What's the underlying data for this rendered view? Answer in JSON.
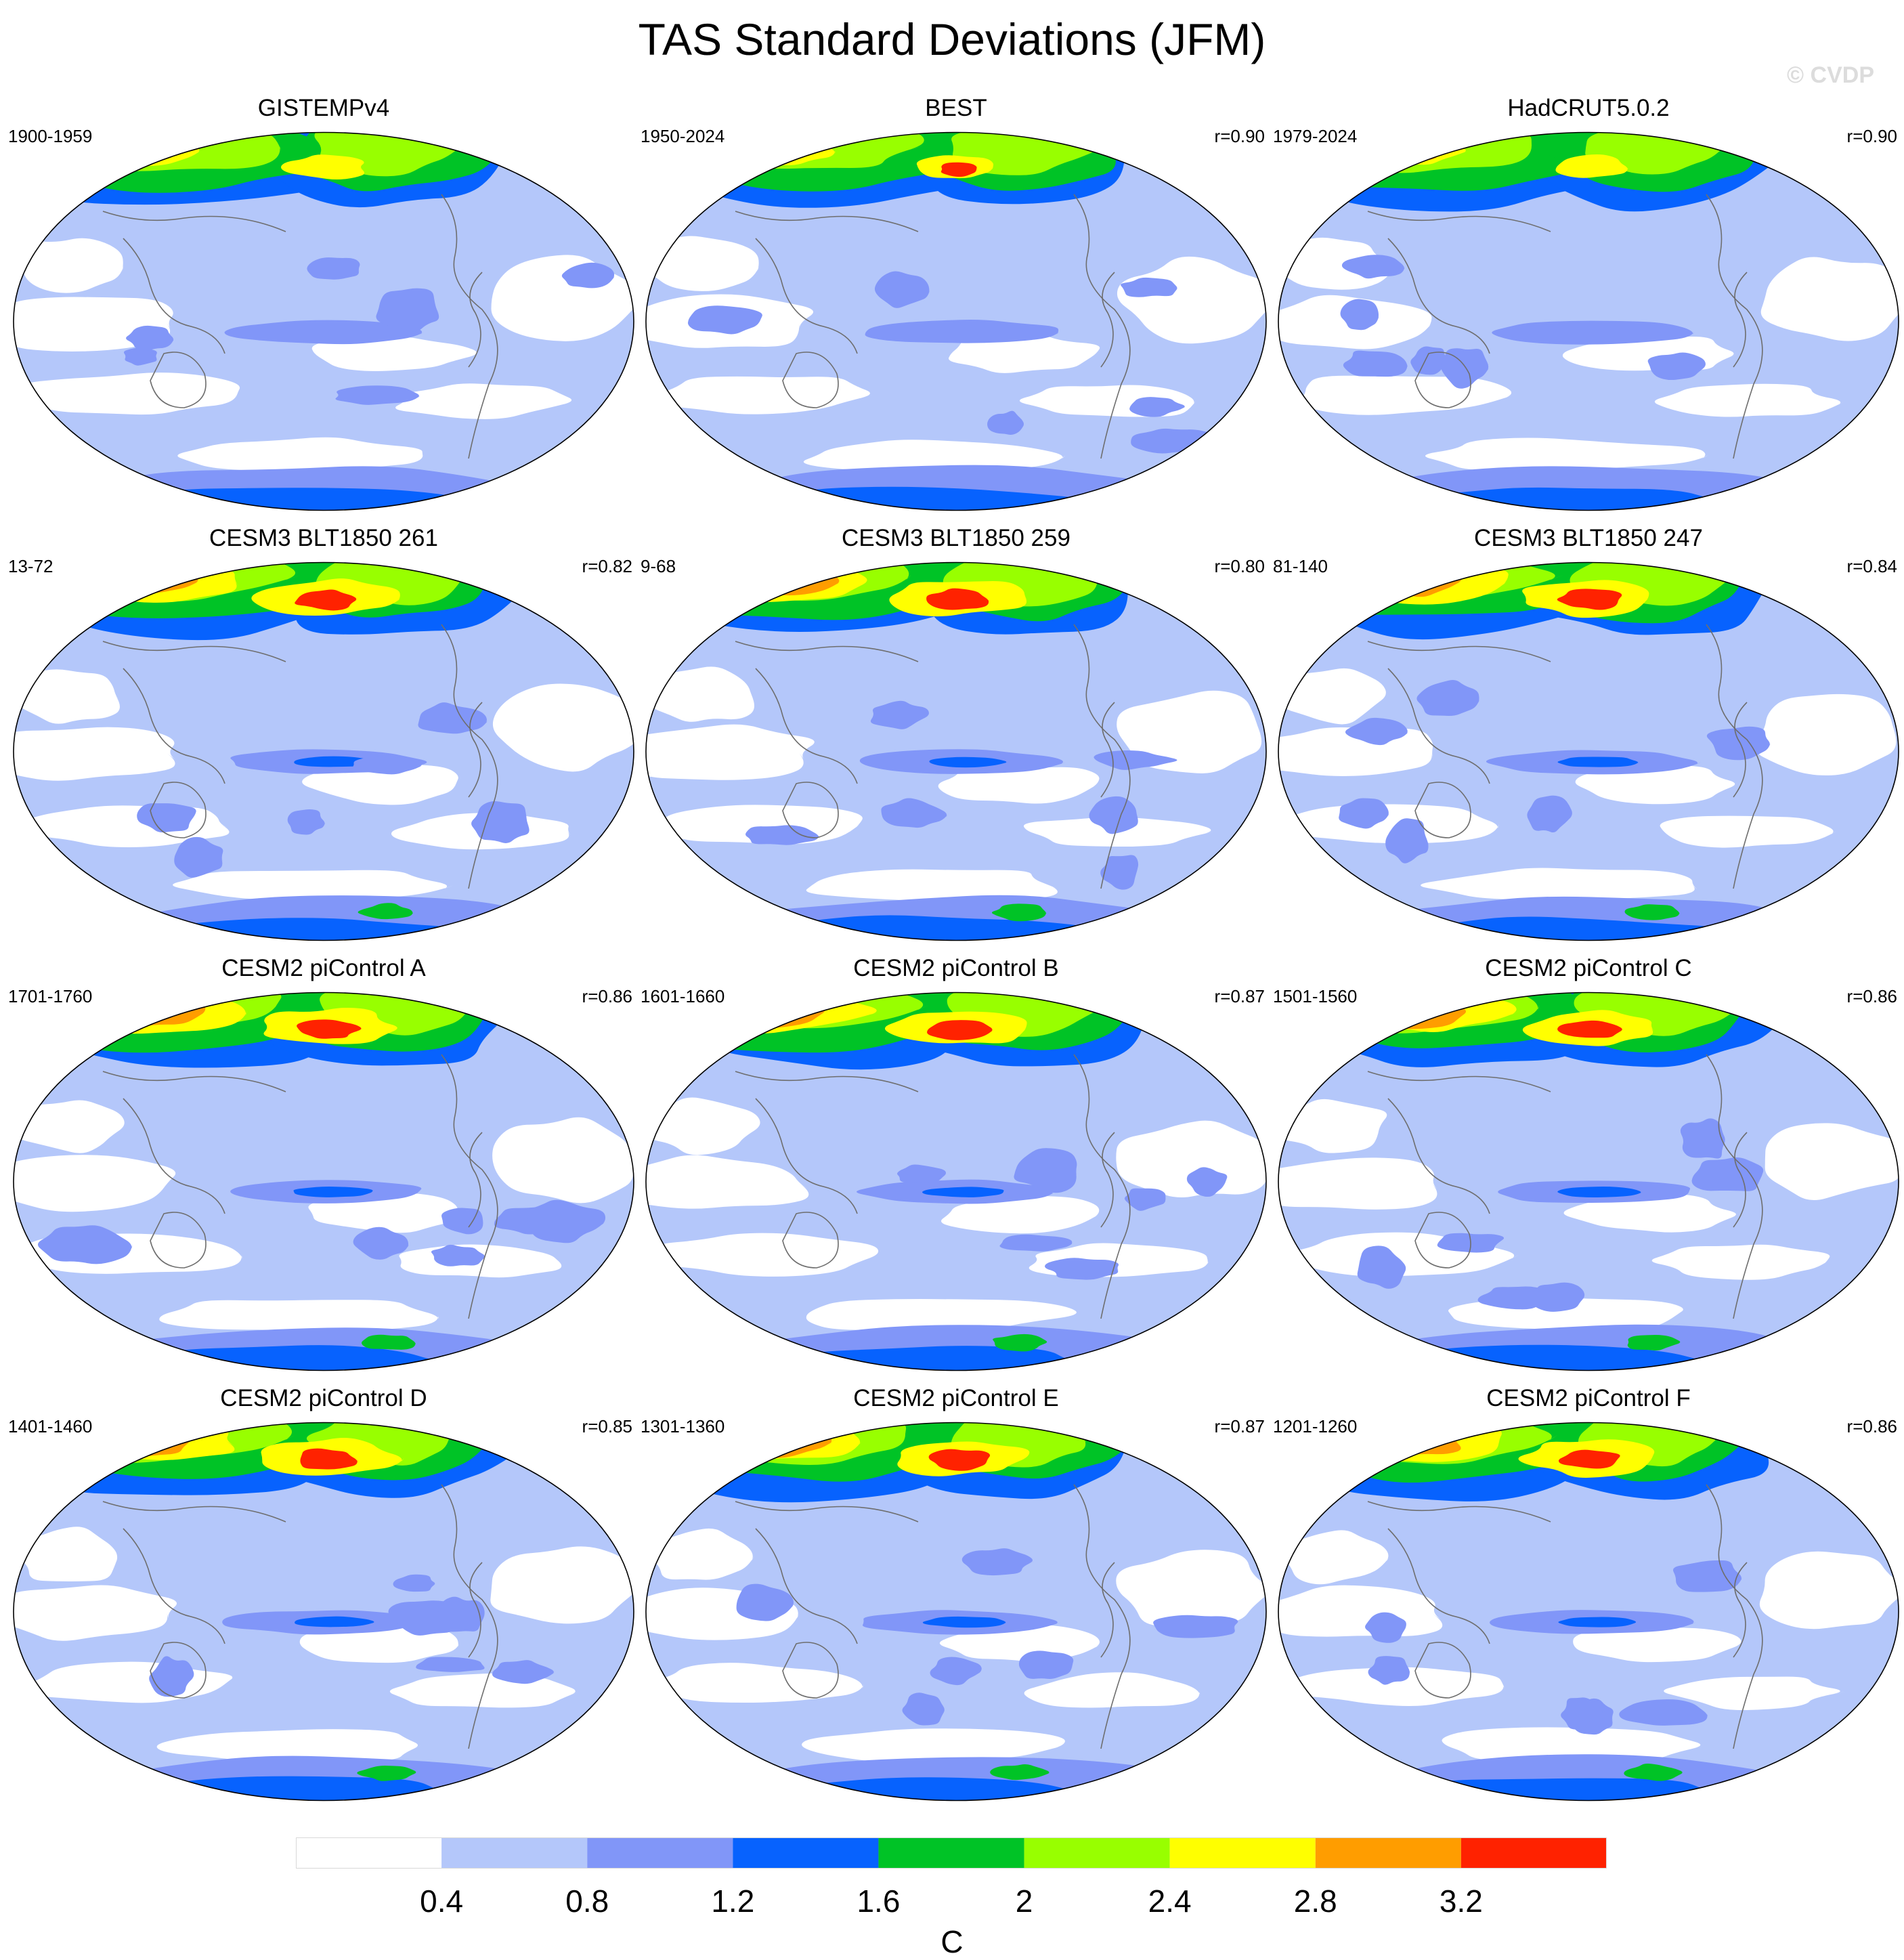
{
  "title": "TAS Standard Deviations (JFM)",
  "watermark": "© CVDP",
  "panels": [
    {
      "title": "GISTEMPv4",
      "period": "1900-1959",
      "corr": ""
    },
    {
      "title": "BEST",
      "period": "1950-2024",
      "corr": "r=0.90"
    },
    {
      "title": "HadCRUT5.0.2",
      "period": "1979-2024",
      "corr": "r=0.90"
    },
    {
      "title": "CESM3 BLT1850 261",
      "period": "13-72",
      "corr": "r=0.82"
    },
    {
      "title": "CESM3 BLT1850 259",
      "period": "9-68",
      "corr": "r=0.80"
    },
    {
      "title": "CESM3 BLT1850 247",
      "period": "81-140",
      "corr": "r=0.84"
    },
    {
      "title": "CESM2 piControl A",
      "period": "1701-1760",
      "corr": "r=0.86"
    },
    {
      "title": "CESM2 piControl B",
      "period": "1601-1660",
      "corr": "r=0.87"
    },
    {
      "title": "CESM2 piControl C",
      "period": "1501-1560",
      "corr": "r=0.86"
    },
    {
      "title": "CESM2 piControl D",
      "period": "1401-1460",
      "corr": "r=0.85"
    },
    {
      "title": "CESM2 piControl E",
      "period": "1301-1360",
      "corr": "r=0.87"
    },
    {
      "title": "CESM2 piControl F",
      "period": "1201-1260",
      "corr": "r=0.86"
    }
  ],
  "colorbar": {
    "unit": "C",
    "ticks": [
      "0.4",
      "0.8",
      "1.2",
      "1.6",
      "2",
      "2.4",
      "2.8",
      "3.2"
    ],
    "colors": [
      "#ffffff",
      "#b4c7fa",
      "#8196f8",
      "#0762fe",
      "#00c326",
      "#98ff00",
      "#ffff00",
      "#ff9d00",
      "#ff2200"
    ]
  }
}
